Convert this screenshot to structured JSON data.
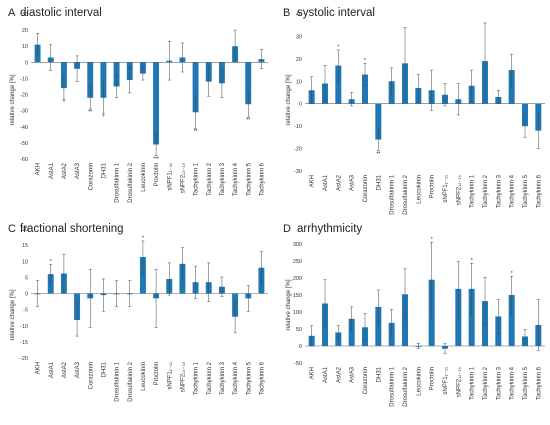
{
  "categories": [
    "AKH",
    "AstA1",
    "AstA2",
    "AstA3",
    "Corazonin",
    "DH31",
    "Drosulfakinin 1",
    "Drosulfakinin 2",
    "Leucokinin",
    "Proctolin",
    "sNPF1₁₋₁₁",
    "sNPF2₁₂₋₁₉",
    "Tachykinin 1",
    "Tachykinin 2",
    "Tachykinin 3",
    "Tachykinin 4",
    "Tachykinin 5",
    "Tachykinin 6"
  ],
  "chart_data": [
    {
      "type": "bar",
      "letter": "A",
      "title": "diastolic interval",
      "ylabel": "relative change [%]",
      "ylim": [
        -60,
        30
      ],
      "yticks": [
        -60,
        -50,
        -40,
        -30,
        -20,
        -10,
        0,
        10,
        20,
        30
      ],
      "values": [
        11,
        3,
        -16,
        -4,
        -22,
        -22,
        -15,
        -11,
        -7,
        -51,
        1,
        3,
        -31,
        -12,
        -13,
        10,
        -26,
        2
      ],
      "errors": [
        7,
        8,
        7,
        8,
        7,
        10,
        7,
        8,
        4,
        7,
        12,
        9,
        10,
        9,
        9,
        10,
        8,
        6
      ],
      "stars": [
        "",
        "",
        "*",
        "",
        "**",
        "*",
        "",
        "",
        "",
        "***",
        "",
        "",
        "**",
        "",
        "",
        "",
        "**",
        ""
      ]
    },
    {
      "type": "bar",
      "letter": "B",
      "title": "systolic interval",
      "ylabel": "relative change [%]",
      "ylim": [
        -30,
        40
      ],
      "yticks": [
        -30,
        -20,
        -10,
        0,
        10,
        20,
        30,
        40
      ],
      "values": [
        6,
        9,
        17,
        2,
        13,
        -16,
        10,
        18,
        7,
        6,
        4,
        2,
        8,
        19,
        3,
        15,
        -10,
        -12
      ],
      "errors": [
        6,
        8,
        7,
        3,
        5,
        5,
        6,
        16,
        6,
        9,
        5,
        7,
        7,
        17,
        3,
        7,
        5,
        8
      ],
      "stars": [
        "",
        "",
        "*",
        "",
        "*",
        "**",
        "",
        "",
        "",
        "",
        "",
        "",
        "",
        "",
        "",
        "",
        "",
        ""
      ]
    },
    {
      "type": "bar",
      "letter": "C",
      "title": "fractional shortening",
      "ylabel": "relative change [%]",
      "ylim": [
        -20,
        20
      ],
      "yticks": [
        -20,
        -15,
        -10,
        -5,
        0,
        5,
        10,
        15,
        20
      ],
      "values": [
        0,
        6,
        6.2,
        -8.2,
        -1.5,
        -0.5,
        0,
        0,
        11.3,
        -1.5,
        4.5,
        9.2,
        3.5,
        3.5,
        2.1,
        -7.2,
        -1.5,
        8
      ],
      "errors": [
        4,
        3,
        6,
        5,
        9,
        5,
        4,
        4,
        5,
        9,
        5,
        5,
        5,
        6,
        3,
        5,
        4,
        5
      ],
      "stars": [
        "",
        "*",
        "",
        "",
        "",
        "",
        "",
        "",
        "*",
        "",
        "",
        "",
        "",
        "",
        "",
        "",
        "",
        ""
      ]
    },
    {
      "type": "bar",
      "letter": "D",
      "title": "arrhythmicity",
      "ylabel": "relative change [%]",
      "ylim": [
        -50,
        300
      ],
      "yticks": [
        -50,
        0,
        50,
        100,
        150,
        200,
        250,
        300
      ],
      "values": [
        30,
        125,
        40,
        80,
        55,
        115,
        68,
        152,
        0,
        195,
        -8,
        168,
        168,
        132,
        87,
        150,
        28,
        62
      ],
      "errors": [
        30,
        70,
        20,
        35,
        40,
        50,
        40,
        75,
        8,
        110,
        15,
        80,
        75,
        70,
        50,
        55,
        20,
        75
      ],
      "stars": [
        "",
        "",
        "",
        "",
        "",
        "",
        "",
        "",
        "",
        "*",
        "",
        "",
        "*",
        "",
        "",
        "*",
        "",
        ""
      ]
    }
  ]
}
